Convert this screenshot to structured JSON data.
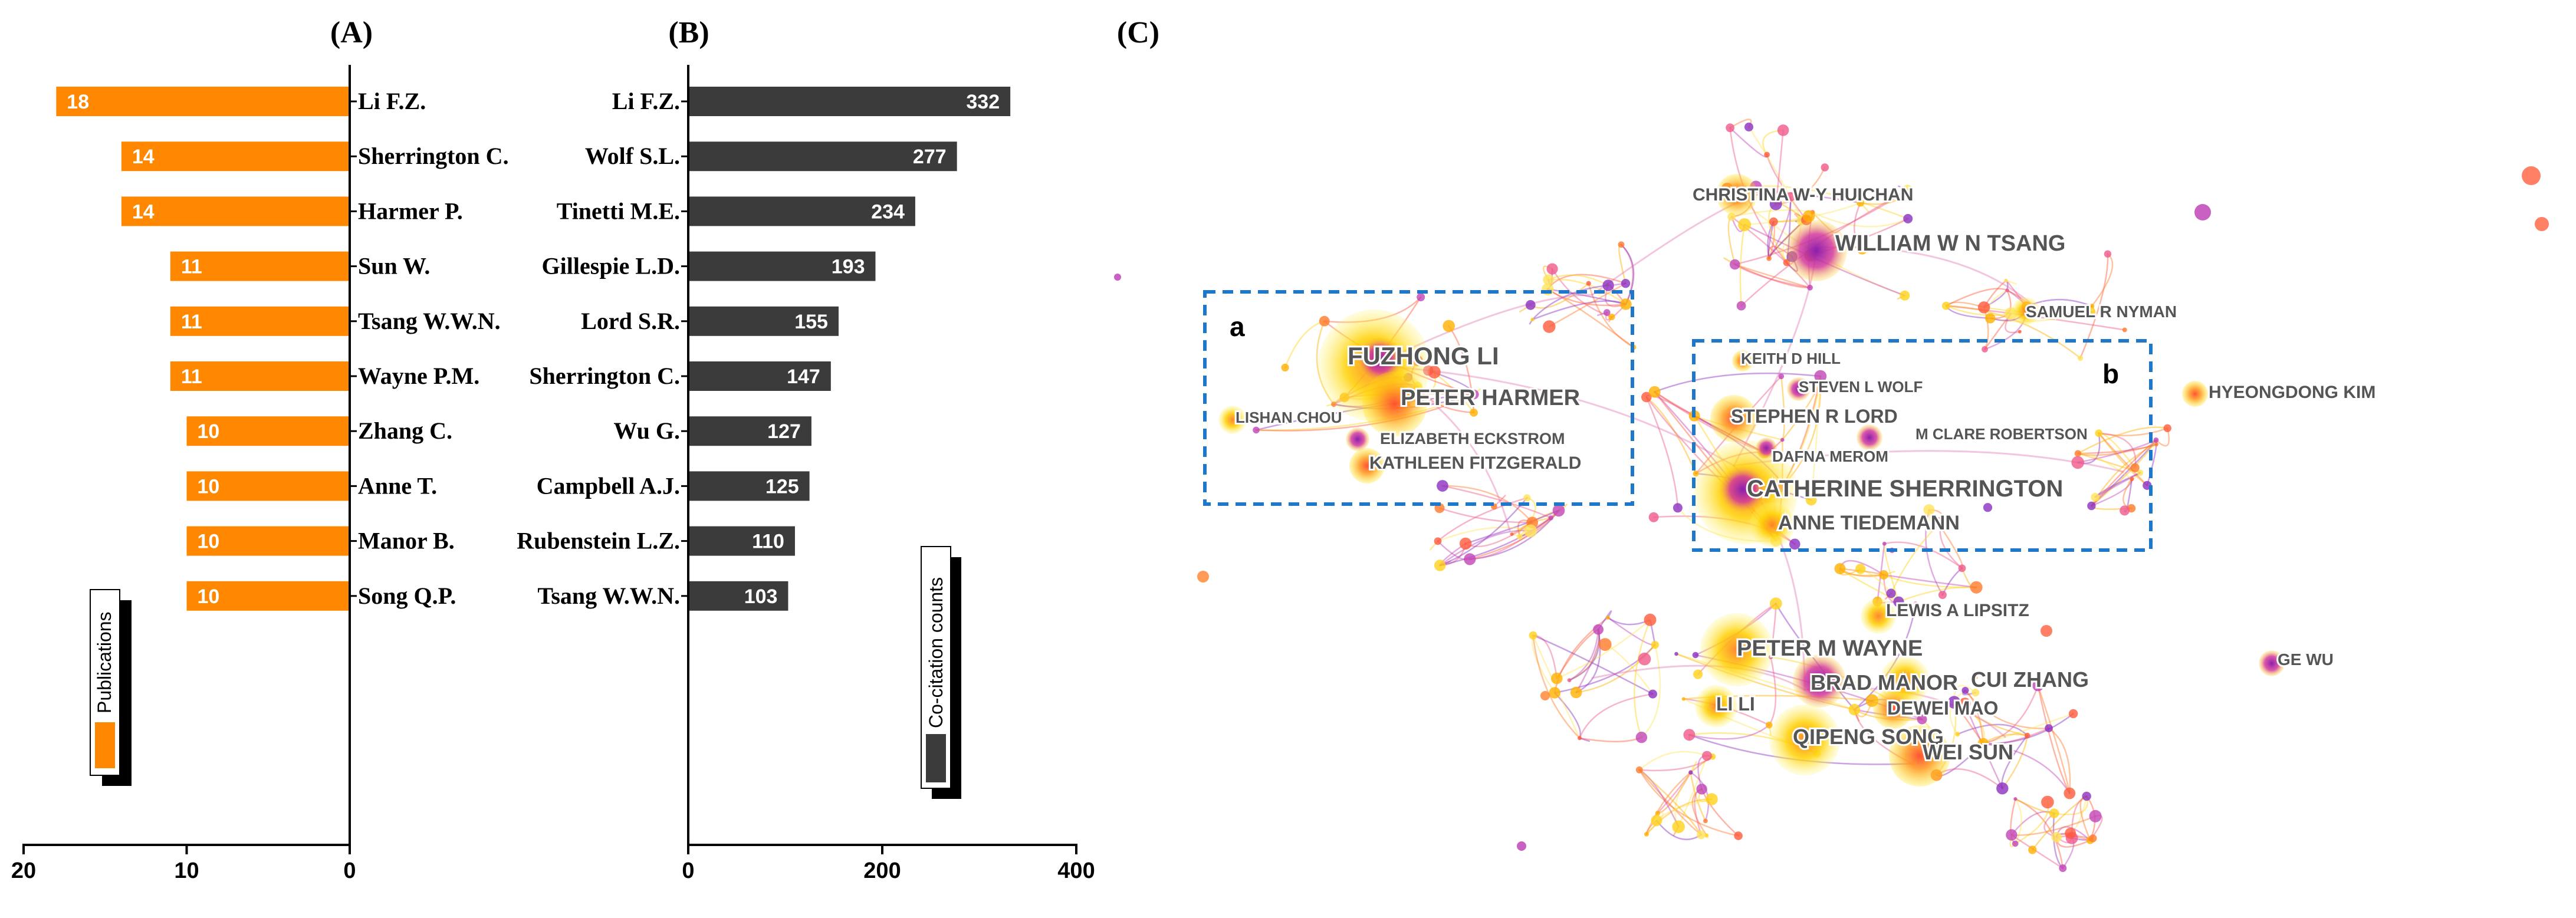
{
  "colors": {
    "publications_bar": "#ff8800",
    "cocitation_bar": "#3b3b3b",
    "box_border": "#1f77c9",
    "network_label": "#555555"
  },
  "chart_data": [
    {
      "panel": "(A)",
      "type": "bar",
      "orientation": "horizontal-reversed",
      "legend": "Publications",
      "categories": [
        "Li F.Z.",
        "Sherrington C.",
        "Harmer P.",
        "Sun W.",
        "Tsang W.W.N.",
        "Wayne P.M.",
        "Zhang C.",
        "Anne T.",
        "Manor B.",
        "Song Q.P."
      ],
      "values": [
        18,
        14,
        14,
        11,
        11,
        11,
        10,
        10,
        10,
        10
      ],
      "xlim": [
        0,
        20
      ],
      "ticks": [
        20,
        10,
        0
      ]
    },
    {
      "panel": "(B)",
      "type": "bar",
      "orientation": "horizontal",
      "legend": "Co-citation counts",
      "categories": [
        "Li F.Z.",
        "Wolf S.L.",
        "Tinetti M.E.",
        "Gillespie L.D.",
        "Lord S.R.",
        "Sherrington C.",
        "Wu G.",
        "Campbell A.J.",
        "Rubenstein L.Z.",
        "Tsang W.W.N."
      ],
      "values": [
        332,
        277,
        234,
        193,
        155,
        147,
        127,
        125,
        110,
        103
      ],
      "xlim": [
        0,
        400
      ],
      "ticks": [
        0,
        200,
        400
      ]
    }
  ],
  "network": {
    "panel": "(C)",
    "clusters": [
      {
        "label": "a",
        "members": [
          "FUZHONG LI",
          "PETER HARMER",
          "LISHAN CHOU",
          "ELIZABETH ECKSTROM",
          "KATHLEEN FITZGERALD"
        ]
      },
      {
        "label": "b",
        "members": [
          "KEITH D HILL",
          "STEVEN L WOLF",
          "STEPHEN R LORD",
          "M CLARE ROBERTSON",
          "DAFNA MEROM",
          "CATHERINE SHERRINGTON",
          "ANNE TIEDEMANN"
        ]
      }
    ],
    "nodes": [
      {
        "name": "CHRISTINA W-Y HUICHAN",
        "size": "small"
      },
      {
        "name": "WILLIAM W N TSANG",
        "size": "large"
      },
      {
        "name": "SAMUEL R NYMAN",
        "size": "small"
      },
      {
        "name": "HYEONGDONG KIM",
        "size": "medium"
      },
      {
        "name": "FUZHONG LI",
        "size": "xlarge"
      },
      {
        "name": "PETER HARMER",
        "size": "large"
      },
      {
        "name": "LISHAN CHOU",
        "size": "small"
      },
      {
        "name": "ELIZABETH ECKSTROM",
        "size": "small"
      },
      {
        "name": "KATHLEEN FITZGERALD",
        "size": "medium"
      },
      {
        "name": "KEITH D HILL",
        "size": "small"
      },
      {
        "name": "STEVEN L WOLF",
        "size": "small"
      },
      {
        "name": "STEPHEN R LORD",
        "size": "medium"
      },
      {
        "name": "M CLARE ROBERTSON",
        "size": "small"
      },
      {
        "name": "DAFNA MEROM",
        "size": "small"
      },
      {
        "name": "CATHERINE SHERRINGTON",
        "size": "xlarge"
      },
      {
        "name": "ANNE TIEDEMANN",
        "size": "medium"
      },
      {
        "name": "LEWIS A LIPSITZ",
        "size": "medium"
      },
      {
        "name": "PETER M WAYNE",
        "size": "large"
      },
      {
        "name": "GE WU",
        "size": "small"
      },
      {
        "name": "BRAD MANOR",
        "size": "large"
      },
      {
        "name": "CUI ZHANG",
        "size": "large"
      },
      {
        "name": "LI LI",
        "size": "medium"
      },
      {
        "name": "DEWEI MAO",
        "size": "medium"
      },
      {
        "name": "QIPENG SONG",
        "size": "large"
      },
      {
        "name": "WEI SUN",
        "size": "large"
      }
    ]
  }
}
